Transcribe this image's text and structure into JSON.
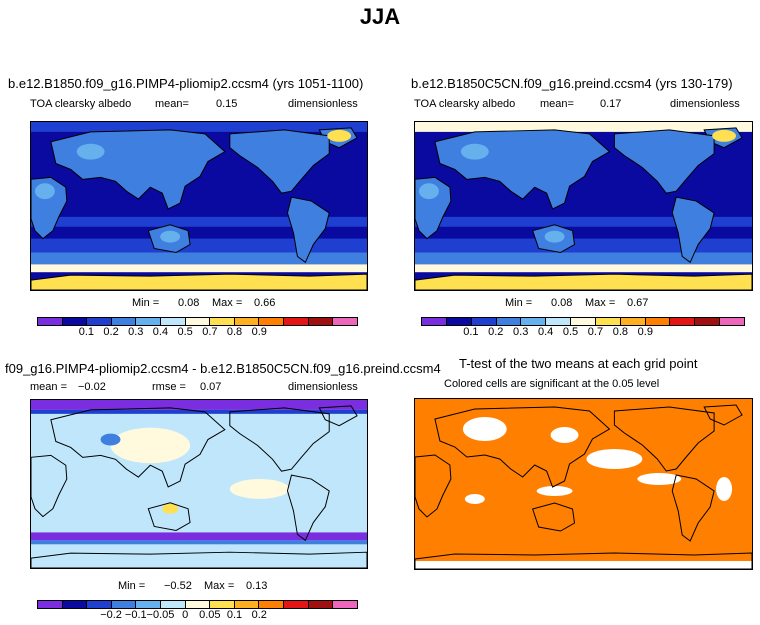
{
  "page": {
    "title": "JJA"
  },
  "panels": [
    {
      "title": "b.e12.B1850.f09_g16.PIMP4-pliomip2.ccsm4 (yrs 1051-1100)",
      "variable": "TOA clearsky albedo",
      "mean_label": "mean=",
      "mean_value": "0.15",
      "units": "dimensionless",
      "min_label": "Min =",
      "min_value": "0.08",
      "max_label": "Max =",
      "max_value": "0.66"
    },
    {
      "title": "b.e12.B1850C5CN.f09_g16.preind.ccsm4 (yrs 130-179)",
      "variable": "TOA clearsky albedo",
      "mean_label": "mean=",
      "mean_value": "0.17",
      "units": "dimensionless",
      "min_label": "Min =",
      "min_value": "0.08",
      "max_label": "Max =",
      "max_value": "0.67"
    },
    {
      "title": "f09_g16.PIMP4-pliomip2.ccsm4 - b.e12.B1850C5CN.f09_g16.preind.ccsm4",
      "mean_label": "mean =",
      "mean_value": "−0.02",
      "rmse_label": "rmse =",
      "rmse_value": "0.07",
      "units": "dimensionless",
      "min_label": "Min =",
      "min_value": "−0.52",
      "max_label": "Max =",
      "max_value": "0.13"
    },
    {
      "title": "T-test of the two means at each grid point",
      "subtitle": "Colored cells are significant at the 0.05 level"
    }
  ],
  "colorbars": {
    "albedo": {
      "colors": [
        "#7b2ee0",
        "#0a0aa0",
        "#1f3fd0",
        "#3f7fe0",
        "#66b0ee",
        "#bfe6fa",
        "#fffadd",
        "#ffe050",
        "#ffb020",
        "#ff7f00",
        "#e51515",
        "#a01010",
        "#ee66bb"
      ],
      "labels": [
        "0.1",
        "0.2",
        "0.3",
        "0.4",
        "0.5",
        "0.7",
        "0.8",
        "0.9"
      ]
    },
    "diff": {
      "colors": [
        "#7b2ee0",
        "#0a0aa0",
        "#1f3fd0",
        "#3f7fe0",
        "#66b0ee",
        "#bfe6fa",
        "#fffadd",
        "#ffe050",
        "#ffb020",
        "#ff7f00",
        "#e51515",
        "#a01010",
        "#ee66bb"
      ],
      "labels": [
        "−0.2",
        "−0.1",
        "−0.05",
        "0",
        "0.05",
        "0.1",
        "0.2"
      ]
    }
  },
  "colors": {
    "ocean_dark": "#0a0aa0",
    "ocean_band": "#1f3fd0",
    "ocean_south": "#3f7fe0",
    "land_albedo": "#3f7fe0",
    "desert": "#66b0ee",
    "ice": "#ffe050",
    "ice_light": "#fffadd",
    "diff_bg": "#bfe6fa",
    "diff_neg": "#7b2ee0",
    "ttest": "#ff7f00"
  }
}
